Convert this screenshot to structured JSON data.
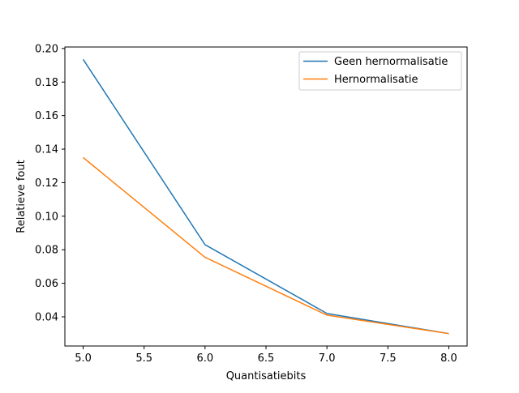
{
  "chart_data": {
    "type": "line",
    "title": "",
    "xlabel": "Quantisatiebits",
    "ylabel": "Relatieve fout",
    "xlim": [
      4.85,
      8.15
    ],
    "ylim": [
      0.0226,
      0.2009
    ],
    "xticks": [
      5.0,
      5.5,
      6.0,
      6.5,
      7.0,
      7.5,
      8.0
    ],
    "xtick_labels": [
      "5.0",
      "5.5",
      "6.0",
      "6.5",
      "7.0",
      "7.5",
      "8.0"
    ],
    "yticks": [
      0.04,
      0.06,
      0.08,
      0.1,
      0.12,
      0.14,
      0.16,
      0.18,
      0.2
    ],
    "ytick_labels": [
      "0.04",
      "0.06",
      "0.08",
      "0.10",
      "0.12",
      "0.14",
      "0.16",
      "0.18",
      "0.20"
    ],
    "grid": false,
    "legend_position": "top-right",
    "x": [
      5,
      6,
      7,
      8
    ],
    "series": [
      {
        "name": "Geen hernormalisatie",
        "color": "#1f77b4",
        "values": [
          0.1935,
          0.083,
          0.042,
          0.03
        ]
      },
      {
        "name": "Hernormalisatie",
        "color": "#ff7f0e",
        "values": [
          0.135,
          0.0755,
          0.041,
          0.03
        ]
      }
    ]
  }
}
